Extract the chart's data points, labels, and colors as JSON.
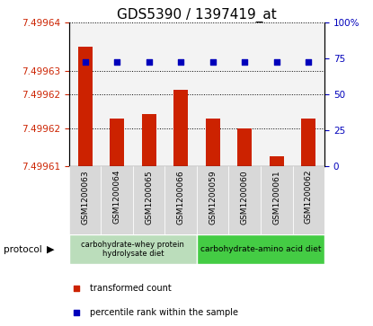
{
  "title": "GDS5390 / 1397419_at",
  "samples": [
    "GSM1200063",
    "GSM1200064",
    "GSM1200065",
    "GSM1200066",
    "GSM1200059",
    "GSM1200060",
    "GSM1200061",
    "GSM1200062"
  ],
  "bar_values": [
    7.499635,
    7.49962,
    7.499621,
    7.499626,
    7.49962,
    7.499618,
    7.499612,
    7.49962
  ],
  "percentile_values": [
    73,
    73,
    73,
    73,
    73,
    73,
    73,
    73
  ],
  "ylim_left": [
    7.49961,
    7.49964
  ],
  "ylim_right": [
    0,
    100
  ],
  "yticks_left_vals": [
    7.49961,
    7.499618,
    7.499625,
    7.49963,
    7.49964
  ],
  "ytick_labels_left": [
    "7.49961",
    "7.49962",
    "7.49962",
    "7.49963",
    "7.49964"
  ],
  "yticks_right_vals": [
    0,
    25,
    50,
    75,
    100
  ],
  "ytick_labels_right": [
    "0",
    "25",
    "50",
    "75",
    "100%"
  ],
  "bar_color": "#cc2200",
  "dot_color": "#0000bb",
  "protocol_label1": "carbohydrate-whey protein\nhydrolysate diet",
  "protocol_label2": "carbohydrate-amino acid diet",
  "protocol_color1": "#bbddbb",
  "protocol_color2": "#44cc44",
  "protocol_text": "protocol",
  "legend_red": "transformed count",
  "legend_blue": "percentile rank within the sample",
  "title_fontsize": 11,
  "tick_fontsize": 7.5,
  "xtick_fontsize": 6.5
}
